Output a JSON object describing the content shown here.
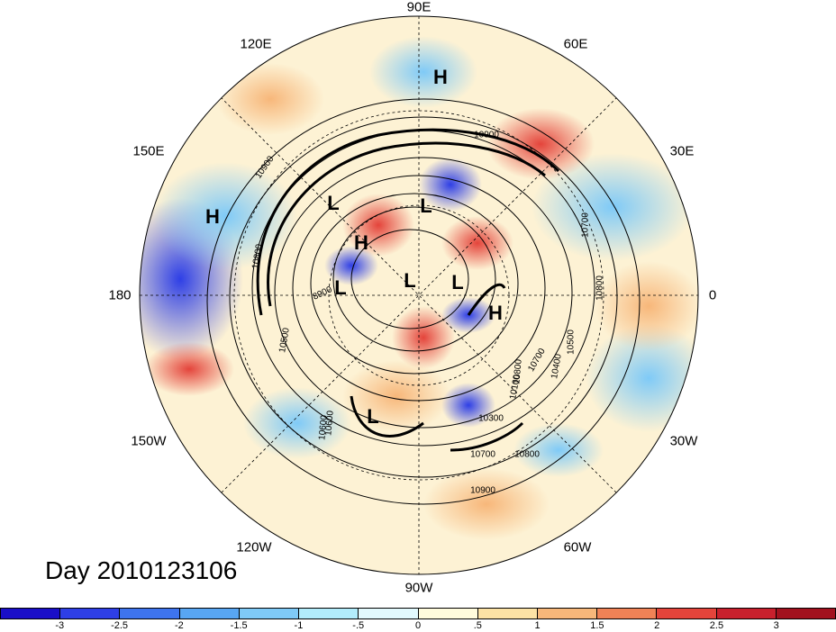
{
  "title": "Day 2010123106",
  "longitude_labels": {
    "e90": "90E",
    "e120": "120E",
    "e60": "60E",
    "e150": "150E",
    "e30": "30E",
    "w180": "180",
    "zero": "0",
    "w150": "150W",
    "w30": "30W",
    "w120": "120W",
    "w60": "60W",
    "w90": "90W"
  },
  "pressure_centers": [
    {
      "label": "H"
    },
    {
      "label": "H"
    },
    {
      "label": "L"
    },
    {
      "label": "L"
    },
    {
      "label": "H"
    },
    {
      "label": "L"
    },
    {
      "label": "L"
    },
    {
      "label": "L"
    },
    {
      "label": "H"
    },
    {
      "label": "L"
    }
  ],
  "contour_labels": [
    "10900",
    "10800",
    "10700",
    "10800",
    "8900",
    "10500",
    "10600",
    "10900",
    "10700",
    "10500",
    "10800",
    "10600",
    "10400",
    "10100",
    "10300",
    "10700",
    "10800",
    "10900"
  ],
  "colorbar": {
    "colors": [
      "#1a0fc8",
      "#2e3fe6",
      "#3e74ee",
      "#58a6f3",
      "#7fcaf7",
      "#b2ecfb",
      "#e2f9fd",
      "#fffbdc",
      "#fce2a5",
      "#f7b77a",
      "#f08256",
      "#e4443b",
      "#c8202d",
      "#a2111e"
    ],
    "tick_labels": [
      "-3",
      "-2.5",
      "-2",
      "-1.5",
      "-1",
      "-.5",
      "0",
      ".5",
      "1",
      "1.5",
      "2",
      "2.5",
      "3"
    ]
  }
}
